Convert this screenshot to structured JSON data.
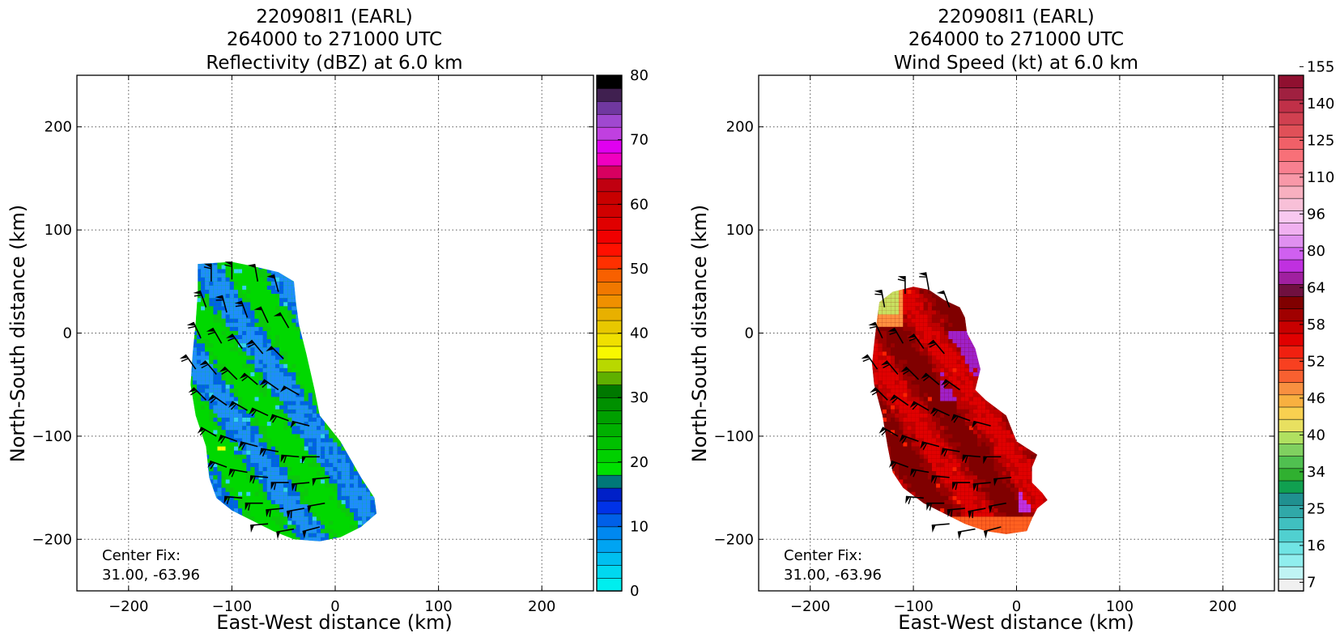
{
  "chart_data": [
    {
      "type": "heatmap",
      "title": [
        "220908I1 (EARL)",
        "264000 to 271000 UTC",
        "Reflectivity (dBZ) at 6.0 km"
      ],
      "xlabel": "East-West distance (km)",
      "ylabel": "North-South distance (km)",
      "xlim": [
        -250,
        250
      ],
      "ylim": [
        -250,
        250
      ],
      "xticks": [
        -200,
        -100,
        0,
        100,
        200
      ],
      "yticks": [
        -200,
        -100,
        0,
        100,
        200
      ],
      "grid": true,
      "annotation": [
        "Center Fix:",
        "31.00, -63.96"
      ],
      "colorbar": {
        "range": [
          0,
          80
        ],
        "tick_labels": [
          "0",
          "10",
          "20",
          "30",
          "40",
          "50",
          "60",
          "70",
          "80"
        ],
        "colors": [
          "#00eeee",
          "#00d8f0",
          "#00bff0",
          "#00a4f2",
          "#0088f0",
          "#0060e8",
          "#0032e8",
          "#0020c8",
          "#007878",
          "#00e000",
          "#00d000",
          "#00c000",
          "#00b000",
          "#00a000",
          "#009000",
          "#007800",
          "#60b000",
          "#b8d800",
          "#f8f800",
          "#f0e000",
          "#e8c800",
          "#e8b000",
          "#f09000",
          "#f07800",
          "#f86000",
          "#ff3000",
          "#ff1000",
          "#f00000",
          "#e00000",
          "#d00000",
          "#c80000",
          "#c00010",
          "#d80060",
          "#f000c0",
          "#e000f0",
          "#c040e0",
          "#a048d0",
          "#7038a0",
          "#402050",
          "#000000"
        ]
      },
      "echo_region": {
        "field_colors": [
          "#00d800",
          "#0cc80c",
          "#0060e8",
          "#1f8cff",
          "#0028d8",
          "#35d0f0",
          "#00c8f0",
          "#ffff00",
          "#f0e000"
        ],
        "outline": [
          [
            -133,
            67
          ],
          [
            -100,
            69
          ],
          [
            -80,
            65
          ],
          [
            -55,
            59
          ],
          [
            -40,
            50
          ],
          [
            -38,
            30
          ],
          [
            -35,
            8
          ],
          [
            -28,
            -20
          ],
          [
            -20,
            -55
          ],
          [
            -15,
            -80
          ],
          [
            5,
            -105
          ],
          [
            25,
            -140
          ],
          [
            38,
            -160
          ],
          [
            40,
            -175
          ],
          [
            25,
            -188
          ],
          [
            5,
            -198
          ],
          [
            -15,
            -202
          ],
          [
            -40,
            -200
          ],
          [
            -60,
            -192
          ],
          [
            -80,
            -182
          ],
          [
            -100,
            -172
          ],
          [
            -115,
            -160
          ],
          [
            -122,
            -140
          ],
          [
            -125,
            -110
          ],
          [
            -135,
            -80
          ],
          [
            -140,
            -50
          ],
          [
            -138,
            -20
          ],
          [
            -135,
            10
          ],
          [
            -133,
            40
          ]
        ]
      },
      "wind_barbs_kt": [
        {
          "x": -120,
          "y": 50,
          "dir": 0,
          "speed": 65
        },
        {
          "x": -100,
          "y": 52,
          "dir": 0,
          "speed": 60
        },
        {
          "x": -75,
          "y": 50,
          "dir": -10,
          "speed": 55
        },
        {
          "x": -55,
          "y": 40,
          "dir": -15,
          "speed": 55
        },
        {
          "x": -125,
          "y": 25,
          "dir": -20,
          "speed": 60
        },
        {
          "x": -105,
          "y": 20,
          "dir": -15,
          "speed": 60
        },
        {
          "x": -85,
          "y": 15,
          "dir": -20,
          "speed": 60
        },
        {
          "x": -65,
          "y": 10,
          "dir": -25,
          "speed": 55
        },
        {
          "x": -45,
          "y": 5,
          "dir": -30,
          "speed": 55
        },
        {
          "x": -130,
          "y": -5,
          "dir": -25,
          "speed": 60
        },
        {
          "x": -110,
          "y": -10,
          "dir": -30,
          "speed": 60
        },
        {
          "x": -90,
          "y": -15,
          "dir": -35,
          "speed": 60
        },
        {
          "x": -70,
          "y": -20,
          "dir": -40,
          "speed": 60
        },
        {
          "x": -50,
          "y": -25,
          "dir": -45,
          "speed": 55
        },
        {
          "x": -135,
          "y": -35,
          "dir": -35,
          "speed": 60
        },
        {
          "x": -115,
          "y": -40,
          "dir": -40,
          "speed": 60
        },
        {
          "x": -95,
          "y": -45,
          "dir": -45,
          "speed": 60
        },
        {
          "x": -75,
          "y": -50,
          "dir": -50,
          "speed": 60
        },
        {
          "x": -55,
          "y": -55,
          "dir": -55,
          "speed": 60
        },
        {
          "x": -35,
          "y": -60,
          "dir": -60,
          "speed": 55
        },
        {
          "x": -125,
          "y": -65,
          "dir": -45,
          "speed": 60
        },
        {
          "x": -105,
          "y": -70,
          "dir": -55,
          "speed": 60
        },
        {
          "x": -85,
          "y": -75,
          "dir": -60,
          "speed": 60
        },
        {
          "x": -65,
          "y": -80,
          "dir": -65,
          "speed": 60
        },
        {
          "x": -45,
          "y": -85,
          "dir": -70,
          "speed": 60
        },
        {
          "x": -25,
          "y": -90,
          "dir": -75,
          "speed": 55
        },
        {
          "x": -115,
          "y": -100,
          "dir": -60,
          "speed": 60
        },
        {
          "x": -95,
          "y": -105,
          "dir": -70,
          "speed": 60
        },
        {
          "x": -75,
          "y": -110,
          "dir": -75,
          "speed": 60
        },
        {
          "x": -55,
          "y": -115,
          "dir": -80,
          "speed": 60
        },
        {
          "x": -35,
          "y": -120,
          "dir": -85,
          "speed": 60
        },
        {
          "x": -15,
          "y": -120,
          "dir": -90,
          "speed": 55
        },
        {
          "x": -105,
          "y": -130,
          "dir": -70,
          "speed": 60
        },
        {
          "x": -85,
          "y": -135,
          "dir": -80,
          "speed": 60
        },
        {
          "x": -65,
          "y": -140,
          "dir": -85,
          "speed": 60
        },
        {
          "x": -45,
          "y": -145,
          "dir": -90,
          "speed": 60
        },
        {
          "x": -25,
          "y": -145,
          "dir": -95,
          "speed": 60
        },
        {
          "x": -5,
          "y": -140,
          "dir": -95,
          "speed": 55
        },
        {
          "x": -90,
          "y": -160,
          "dir": -85,
          "speed": 60
        },
        {
          "x": -70,
          "y": -165,
          "dir": -90,
          "speed": 60
        },
        {
          "x": -50,
          "y": -170,
          "dir": -95,
          "speed": 60
        },
        {
          "x": -30,
          "y": -170,
          "dir": -100,
          "speed": 60
        },
        {
          "x": -10,
          "y": -165,
          "dir": -100,
          "speed": 55
        },
        {
          "x": -65,
          "y": -185,
          "dir": -95,
          "speed": 55
        },
        {
          "x": -40,
          "y": -190,
          "dir": -100,
          "speed": 55
        },
        {
          "x": -15,
          "y": -188,
          "dir": -105,
          "speed": 55
        }
      ]
    },
    {
      "type": "heatmap",
      "title": [
        "220908I1 (EARL)",
        "264000 to 271000 UTC",
        "Wind Speed (kt) at 6.0 km"
      ],
      "xlabel": "East-West distance (km)",
      "ylabel": "North-South distance (km)",
      "xlim": [
        -250,
        250
      ],
      "ylim": [
        -250,
        250
      ],
      "xticks": [
        -200,
        -100,
        0,
        100,
        200
      ],
      "yticks": [
        -200,
        -100,
        0,
        100,
        200
      ],
      "grid": true,
      "annotation": [
        "Center Fix:",
        "31.00, -63.96"
      ],
      "colorbar": {
        "range": [
          0,
          160
        ],
        "tick_labels": [
          "7",
          "16",
          "25",
          "34",
          "40",
          "46",
          "52",
          "58",
          "64",
          "80",
          "96",
          "110",
          "125",
          "140",
          "155"
        ],
        "colors": [
          "#f0f0f0",
          "#c0f4f4",
          "#90eeee",
          "#70e4e4",
          "#50d0d0",
          "#40c0c0",
          "#30a8a8",
          "#209090",
          "#10a050",
          "#30b030",
          "#50c050",
          "#80d060",
          "#b0e060",
          "#e8e060",
          "#f8d050",
          "#f8b040",
          "#f89040",
          "#f86030",
          "#f84020",
          "#f02010",
          "#e00000",
          "#c80000",
          "#a00000",
          "#800000",
          "#701040",
          "#a020a0",
          "#c030e0",
          "#d060f0",
          "#e090f0",
          "#f0b0f0",
          "#f8c8f0",
          "#f8c0d8",
          "#f8b0c0",
          "#f898a8",
          "#f88090",
          "#f87078",
          "#f06068",
          "#e05058",
          "#d04050",
          "#c03048",
          "#a02040",
          "#901030"
        ]
      },
      "wind_region": {
        "field_colors": [
          "#800000",
          "#9a0000",
          "#c00000",
          "#e00000",
          "#ff2000",
          "#ff6020",
          "#ff9040",
          "#c8e060",
          "#a020c8",
          "#c030e0",
          "#600030"
        ],
        "outline": [
          [
            -133,
            30
          ],
          [
            -120,
            40
          ],
          [
            -100,
            45
          ],
          [
            -85,
            42
          ],
          [
            -70,
            32
          ],
          [
            -55,
            25
          ],
          [
            -50,
            15
          ],
          [
            -48,
            0
          ],
          [
            -40,
            -15
          ],
          [
            -35,
            -35
          ],
          [
            -40,
            -55
          ],
          [
            -30,
            -65
          ],
          [
            -10,
            -80
          ],
          [
            0,
            -105
          ],
          [
            20,
            -118
          ],
          [
            15,
            -130
          ],
          [
            15,
            -145
          ],
          [
            25,
            -155
          ],
          [
            30,
            -162
          ],
          [
            20,
            -170
          ],
          [
            15,
            -180
          ],
          [
            10,
            -192
          ],
          [
            -10,
            -195
          ],
          [
            -30,
            -192
          ],
          [
            -50,
            -185
          ],
          [
            -70,
            -175
          ],
          [
            -90,
            -165
          ],
          [
            -110,
            -150
          ],
          [
            -120,
            -135
          ],
          [
            -125,
            -110
          ],
          [
            -130,
            -80
          ],
          [
            -138,
            -50
          ],
          [
            -140,
            -30
          ],
          [
            -138,
            -10
          ],
          [
            -135,
            15
          ]
        ]
      },
      "wind_barbs_kt": [
        {
          "x": -128,
          "y": 25,
          "dir": -10,
          "speed": 60
        },
        {
          "x": -108,
          "y": 38,
          "dir": 0,
          "speed": 60
        },
        {
          "x": -85,
          "y": 42,
          "dir": -10,
          "speed": 60
        },
        {
          "x": -65,
          "y": 25,
          "dir": -20,
          "speed": 55
        },
        {
          "x": -130,
          "y": -5,
          "dir": -25,
          "speed": 60
        },
        {
          "x": -110,
          "y": -10,
          "dir": -30,
          "speed": 60
        },
        {
          "x": -90,
          "y": -15,
          "dir": -35,
          "speed": 60
        },
        {
          "x": -70,
          "y": -20,
          "dir": -40,
          "speed": 60
        },
        {
          "x": -135,
          "y": -35,
          "dir": -35,
          "speed": 60
        },
        {
          "x": -115,
          "y": -40,
          "dir": -40,
          "speed": 60
        },
        {
          "x": -95,
          "y": -45,
          "dir": -45,
          "speed": 60
        },
        {
          "x": -75,
          "y": -50,
          "dir": -50,
          "speed": 60
        },
        {
          "x": -55,
          "y": -55,
          "dir": -55,
          "speed": 60
        },
        {
          "x": -125,
          "y": -65,
          "dir": -45,
          "speed": 60
        },
        {
          "x": -105,
          "y": -70,
          "dir": -55,
          "speed": 60
        },
        {
          "x": -85,
          "y": -75,
          "dir": -60,
          "speed": 60
        },
        {
          "x": -65,
          "y": -80,
          "dir": -65,
          "speed": 60
        },
        {
          "x": -45,
          "y": -85,
          "dir": -70,
          "speed": 60
        },
        {
          "x": -25,
          "y": -90,
          "dir": -75,
          "speed": 55
        },
        {
          "x": -115,
          "y": -100,
          "dir": -60,
          "speed": 60
        },
        {
          "x": -95,
          "y": -105,
          "dir": -70,
          "speed": 60
        },
        {
          "x": -75,
          "y": -110,
          "dir": -75,
          "speed": 60
        },
        {
          "x": -55,
          "y": -115,
          "dir": -80,
          "speed": 60
        },
        {
          "x": -35,
          "y": -120,
          "dir": -85,
          "speed": 60
        },
        {
          "x": -15,
          "y": -120,
          "dir": -90,
          "speed": 55
        },
        {
          "x": -105,
          "y": -130,
          "dir": -70,
          "speed": 60
        },
        {
          "x": -85,
          "y": -135,
          "dir": -80,
          "speed": 60
        },
        {
          "x": -65,
          "y": -140,
          "dir": -85,
          "speed": 60
        },
        {
          "x": -45,
          "y": -145,
          "dir": -90,
          "speed": 60
        },
        {
          "x": -25,
          "y": -145,
          "dir": -95,
          "speed": 60
        },
        {
          "x": -5,
          "y": -140,
          "dir": -95,
          "speed": 55
        },
        {
          "x": -90,
          "y": -160,
          "dir": -85,
          "speed": 60
        },
        {
          "x": -70,
          "y": -165,
          "dir": -90,
          "speed": 60
        },
        {
          "x": -50,
          "y": -170,
          "dir": -95,
          "speed": 60
        },
        {
          "x": -30,
          "y": -170,
          "dir": -100,
          "speed": 60
        },
        {
          "x": -10,
          "y": -165,
          "dir": -100,
          "speed": 55
        },
        {
          "x": -65,
          "y": -185,
          "dir": -95,
          "speed": 55
        },
        {
          "x": -40,
          "y": -190,
          "dir": -100,
          "speed": 55
        },
        {
          "x": -15,
          "y": -188,
          "dir": -105,
          "speed": 55
        }
      ]
    }
  ]
}
